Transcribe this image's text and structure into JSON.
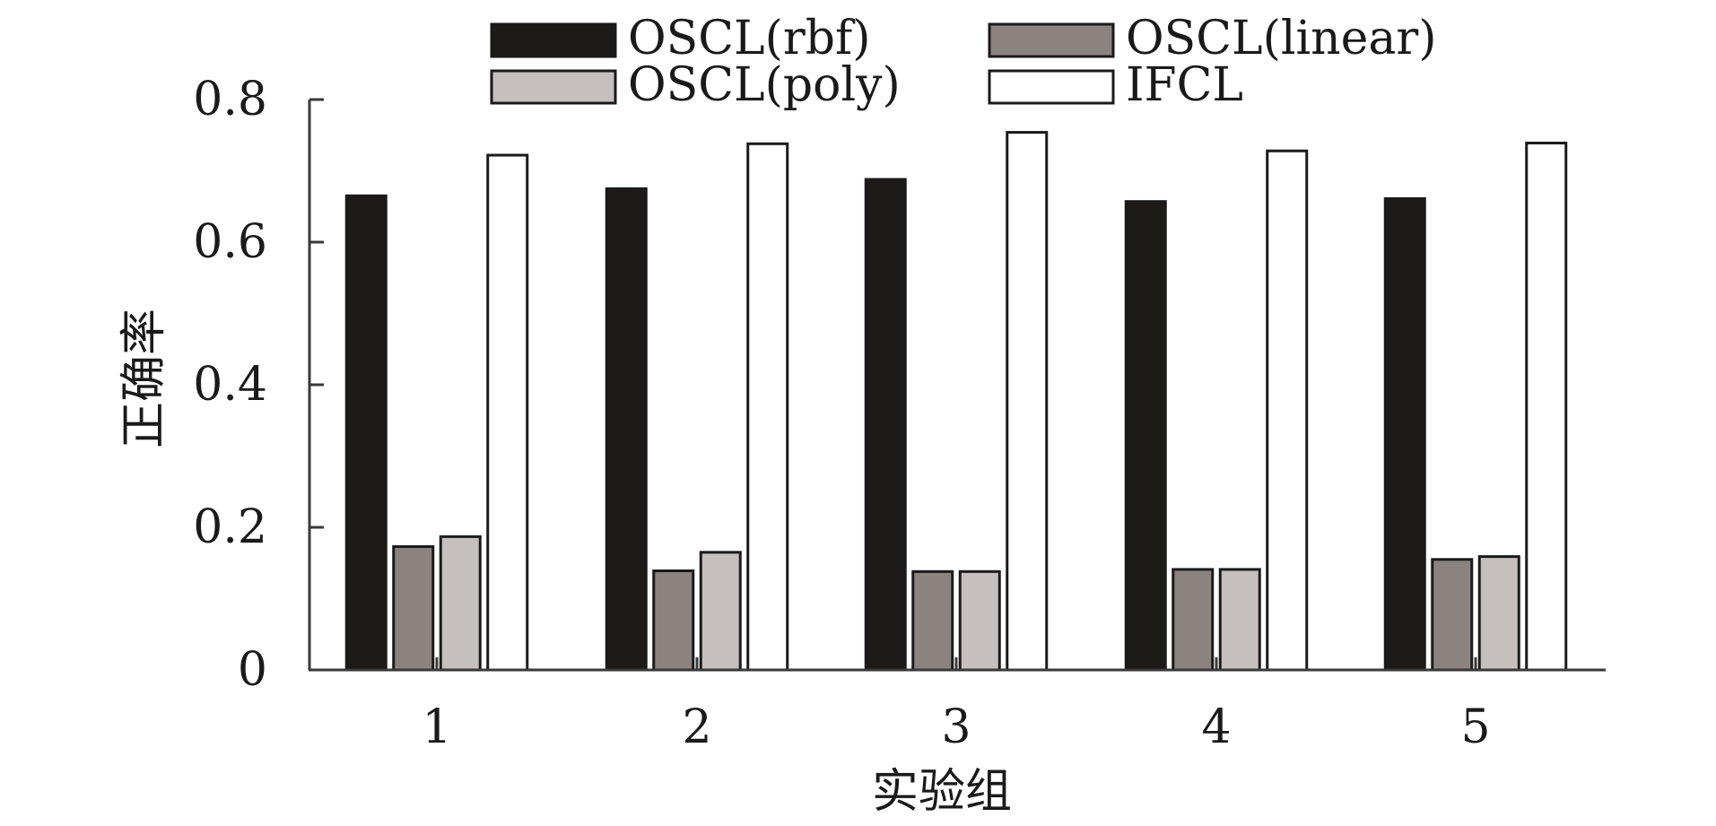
{
  "chart_data": {
    "type": "bar",
    "title": "",
    "xlabel": "实验组",
    "ylabel": "正确率",
    "categories": [
      "1",
      "2",
      "3",
      "4",
      "5"
    ],
    "ylim": [
      0,
      0.8
    ],
    "yticks": [
      0,
      0.2,
      0.4,
      0.6,
      0.8
    ],
    "ytick_labels": [
      "0",
      "0.2",
      "0.4",
      "0.6",
      "0.8"
    ],
    "grid": false,
    "legend_position": "top",
    "series": [
      {
        "name": "OSCL(rbf)",
        "color": "#1c1a17",
        "values": [
          0.665,
          0.675,
          0.688,
          0.657,
          0.661
        ]
      },
      {
        "name": "OSCL(linear)",
        "color": "#8b8380",
        "values": [
          0.173,
          0.139,
          0.138,
          0.141,
          0.155
        ]
      },
      {
        "name": "OSCL(poly)",
        "color": "#c5bfbd",
        "values": [
          0.187,
          0.165,
          0.138,
          0.141,
          0.159
        ]
      },
      {
        "name": "IFCL",
        "color": "#ffffff",
        "values": [
          0.722,
          0.738,
          0.754,
          0.728,
          0.739
        ]
      }
    ]
  }
}
